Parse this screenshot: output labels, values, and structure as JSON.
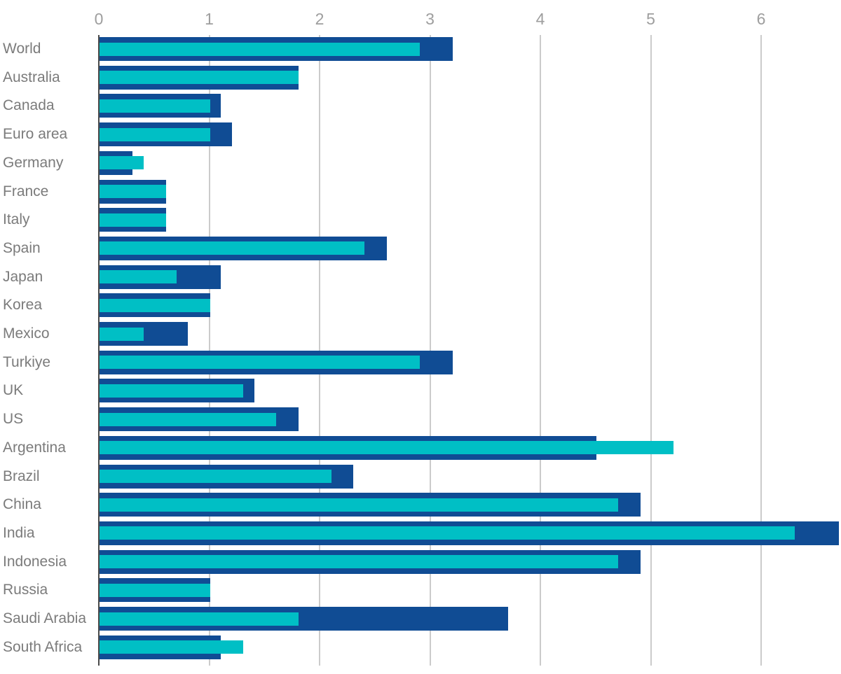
{
  "chart_data": {
    "type": "bar",
    "orientation": "horizontal",
    "title": "",
    "xlabel": "",
    "ylabel": "",
    "x_ticks": [
      "0",
      "1",
      "2",
      "3",
      "4",
      "5",
      "6"
    ],
    "xlim": [
      0,
      6.72
    ],
    "grid": true,
    "legend_position": "none",
    "categories": [
      "World",
      "Australia",
      "Canada",
      "Euro area",
      "Germany",
      "France",
      "Italy",
      "Spain",
      "Japan",
      "Korea",
      "Mexico",
      "Turkiye",
      "UK",
      "US",
      "Argentina",
      "Brazil",
      "China",
      "India",
      "Indonesia",
      "Russia",
      "Saudi Arabia",
      "South Africa"
    ],
    "series": [
      {
        "name": "outer-navy-series",
        "color": "#104C94",
        "values": [
          3.2,
          1.8,
          1.1,
          1.2,
          0.3,
          0.6,
          0.6,
          2.6,
          1.1,
          1.0,
          0.8,
          3.2,
          1.4,
          1.8,
          4.5,
          2.3,
          4.9,
          6.7,
          4.9,
          1.0,
          3.7,
          1.1
        ]
      },
      {
        "name": "inner-teal-series",
        "color": "#00BFC5",
        "values": [
          2.9,
          1.8,
          1.0,
          1.0,
          0.4,
          0.6,
          0.6,
          2.4,
          0.7,
          1.0,
          0.4,
          2.9,
          1.3,
          1.6,
          5.2,
          2.1,
          4.7,
          6.3,
          4.7,
          1.0,
          1.8,
          1.3
        ]
      }
    ],
    "colors": {
      "gridline": "#CBCBCB",
      "zero_axis_line": "#4A4A4A",
      "tick_label": "#9E9E9E",
      "category_label": "#7B7B7B",
      "background": "#FFFFFF"
    }
  }
}
